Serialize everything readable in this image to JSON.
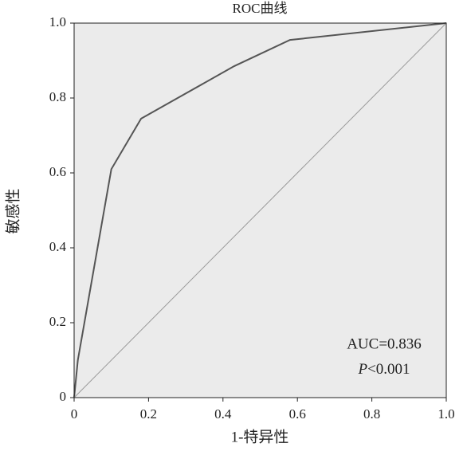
{
  "chart_data": {
    "type": "line",
    "title": "ROC曲线",
    "x_label": "1-特异性",
    "y_label": "敏感性",
    "series": [
      {
        "name": "ROC",
        "color": "#555555",
        "x": [
          0,
          0.01,
          0.1,
          0.18,
          0.43,
          0.58,
          1
        ],
        "values": [
          0,
          0.1,
          0.61,
          0.745,
          0.885,
          0.955,
          1
        ]
      },
      {
        "name": "reference",
        "color": "#999999",
        "x": [
          0,
          1
        ],
        "values": [
          0,
          1
        ]
      }
    ],
    "xlim": [
      0,
      1
    ],
    "ylim": [
      0,
      1
    ],
    "xticks": [
      0,
      0.2,
      0.4,
      0.6,
      0.8,
      {
        "value": 1,
        "label": "1.0"
      }
    ],
    "yticks": [
      0,
      0.2,
      0.4,
      0.6,
      0.8,
      {
        "value": 1,
        "label": "1.0"
      }
    ],
    "background": "#ebebeb",
    "auc_label": "AUC=0.836",
    "p_label": {
      "symbol": "P",
      "text": "<0.001"
    }
  }
}
